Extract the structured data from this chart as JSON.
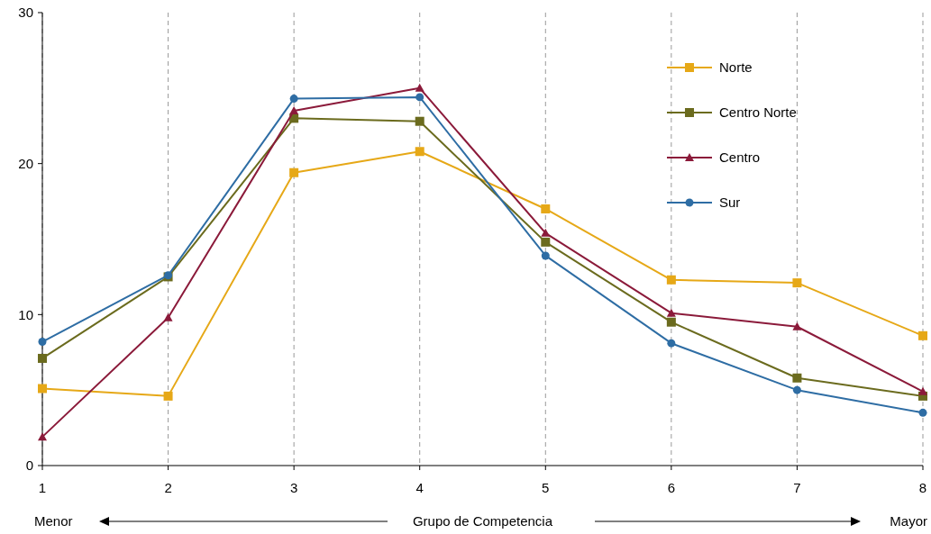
{
  "chart_data": {
    "type": "line",
    "xlabel": "Grupo de Competencia",
    "annotations": [
      "Menor",
      "Mayor"
    ],
    "x": [
      1,
      2,
      3,
      4,
      5,
      6,
      7,
      8
    ],
    "xlim": [
      1,
      8
    ],
    "xticks": [
      1,
      2,
      3,
      4,
      5,
      6,
      7,
      8
    ],
    "ylim": [
      0,
      30
    ],
    "yticks": [
      0,
      10,
      20,
      30
    ],
    "grid": "x",
    "legend": "top right",
    "series": [
      {
        "name": "Norte",
        "color": "#e6a817",
        "marker": "square",
        "values": [
          5.1,
          4.6,
          19.4,
          20.8,
          17.0,
          12.3,
          12.1,
          8.6
        ]
      },
      {
        "name": "Centro Norte",
        "color": "#6b6b1e",
        "marker": "square",
        "values": [
          7.1,
          12.5,
          23.0,
          22.8,
          14.8,
          9.5,
          5.8,
          4.6
        ]
      },
      {
        "name": "Centro",
        "color": "#8b1a3a",
        "marker": "triangle",
        "values": [
          1.9,
          9.8,
          23.5,
          25.0,
          15.4,
          10.1,
          9.2,
          4.9
        ]
      },
      {
        "name": "Sur",
        "color": "#2e6da4",
        "marker": "circle",
        "values": [
          8.2,
          12.6,
          24.3,
          24.4,
          13.9,
          8.1,
          5.0,
          3.5
        ]
      }
    ]
  }
}
